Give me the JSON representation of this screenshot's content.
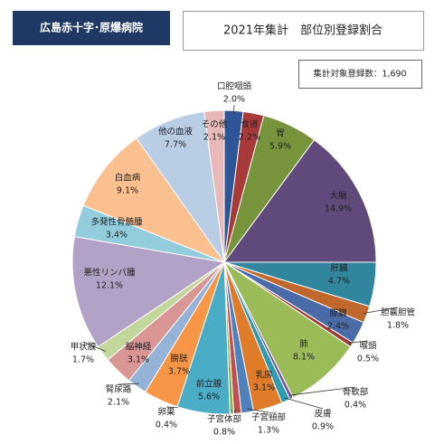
{
  "header": {
    "hospital": "広島赤十字･原爆病院",
    "note": "集計対象登録数：1,690"
  },
  "chart_data": {
    "type": "pie",
    "title": "2021年集計　部位別登録割合",
    "categories": [
      "口腔咽頭",
      "食道",
      "胃",
      "大腸",
      "肝臓",
      "胆嚢胆管",
      "膵臓",
      "喉頭",
      "肺",
      "骨軟部",
      "皮膚",
      "乳房",
      "子宮頸部",
      "子宮体部",
      "卵巣",
      "前立腺",
      "膀胱",
      "腎尿路",
      "脳神経",
      "甲状腺",
      "悪性リンパ腫",
      "多発性骨髄腫",
      "白血病",
      "他の血液",
      "その他"
    ],
    "values": [
      2.0,
      2.2,
      5.9,
      14.9,
      4.7,
      1.8,
      2.4,
      0.5,
      8.1,
      0.4,
      0.9,
      3.1,
      1.3,
      0.8,
      0.4,
      5.6,
      3.7,
      2.1,
      3.1,
      1.7,
      12.1,
      3.4,
      9.1,
      7.7,
      2.1
    ],
    "value_labels": [
      "2.0%",
      "2.2%",
      "5.9%",
      "14.9%",
      "4.7%",
      "1.8%",
      "2.4%",
      "0.5%",
      "8.1%",
      "0.4%",
      "0.9%",
      "3.1%",
      "1.3%",
      "0.8%",
      "0.4%",
      "5.6%",
      "3.7%",
      "2.1%",
      "3.1%",
      "1.7%",
      "12.1%",
      "3.4%",
      "9.1%",
      "7.7%",
      "2.1%"
    ],
    "colors": [
      "#2e5597",
      "#a83a3a",
      "#77933c",
      "#604a7b",
      "#31859c",
      "#c0672e",
      "#4a6aa8",
      "#9c3a38",
      "#9bbb59",
      "#7a5a9c",
      "#2f9bb0",
      "#e07b2a",
      "#4f81bd",
      "#c0504d",
      "#8db255",
      "#4bacc6",
      "#f79646",
      "#95b3d7",
      "#d99694",
      "#c3d69b",
      "#b3a2c7",
      "#93cddd",
      "#fac090",
      "#b9cde5",
      "#e6b9b8"
    ]
  }
}
